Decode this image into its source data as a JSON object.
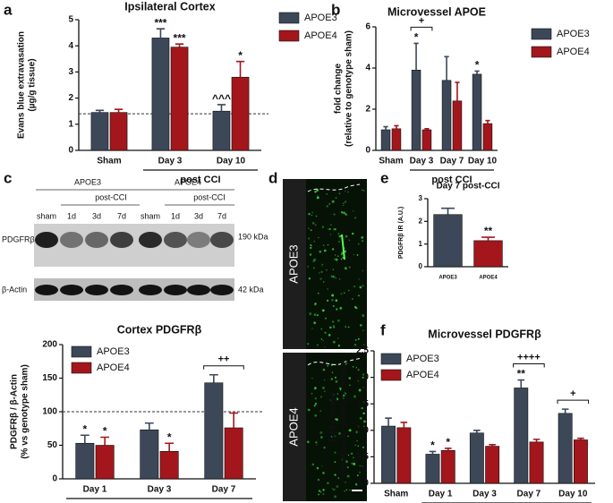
{
  "panel_labels": [
    "a",
    "b",
    "c",
    "d",
    "e",
    "f"
  ],
  "blot": {
    "groups": [
      "APOE3",
      "APOE4"
    ],
    "subgroup": "post-CCI",
    "lanes": [
      "sham",
      "1d",
      "3d",
      "7d",
      "sham",
      "1d",
      "3d",
      "7d"
    ],
    "rows": [
      {
        "label": "PDGFRβ",
        "size": "190 kDa"
      },
      {
        "label": "β-Actin",
        "size": "42 kDa"
      }
    ]
  },
  "micrograph": {
    "panels": [
      "APOE3",
      "APOE4"
    ]
  },
  "chart_data": [
    {
      "type": "bar",
      "title": "Ipsilateral Cortex",
      "ylabel": [
        "Evans blue extravasation",
        "(µg/g tissue)"
      ],
      "categories": [
        "Sham",
        "Day 3",
        "Day 10"
      ],
      "group_label": "post CCI",
      "series": [
        {
          "name": "APOE3",
          "color": "#3c4858",
          "values": [
            1.45,
            4.3,
            1.5
          ],
          "errors": [
            0.08,
            0.35,
            0.25
          ],
          "labels": [
            null,
            "***",
            "^^^"
          ]
        },
        {
          "name": "APOE4",
          "color": "#a3161c",
          "values": [
            1.45,
            3.95,
            2.8
          ],
          "errors": [
            0.12,
            0.12,
            0.6
          ],
          "labels": [
            null,
            "***",
            "*"
          ]
        }
      ],
      "ylim": [
        0,
        5
      ],
      "yticks": [
        0,
        1,
        2,
        3,
        4,
        5
      ],
      "reference_line": 1.4,
      "legend": "upper right"
    },
    {
      "type": "bar",
      "title": "Microvessel APOE",
      "ylabel": [
        "fold change",
        "(relative to genotype sham)"
      ],
      "categories": [
        "Sham",
        "Day 3",
        "Day 7",
        "Day 10"
      ],
      "group_label": "post CCI",
      "series": [
        {
          "name": "APOE3",
          "color": "#3c4858",
          "values": [
            1.0,
            3.9,
            3.4,
            3.7
          ],
          "errors": [
            0.15,
            1.3,
            1.15,
            0.15
          ],
          "labels": [
            null,
            "*",
            null,
            "*"
          ]
        },
        {
          "name": "APOE4",
          "color": "#a3161c",
          "values": [
            1.05,
            1.0,
            2.4,
            1.3
          ],
          "errors": [
            0.15,
            0.05,
            0.9,
            0.15
          ],
          "labels": [
            null,
            null,
            null,
            null
          ]
        }
      ],
      "bracket_labels": [
        null,
        "+",
        null,
        null
      ],
      "ylim": [
        0,
        6
      ],
      "yticks": [
        0,
        2,
        4,
        6
      ],
      "legend": "upper right"
    },
    {
      "type": "bar",
      "title": "Cortex PDGFRβ",
      "ylabel": [
        "PDGFRβ / β-Actin",
        "(% vs genotype sham)"
      ],
      "categories": [
        "Day 1",
        "Day 3",
        "Day 7"
      ],
      "group_label": "post CCI",
      "series": [
        {
          "name": "APOE3",
          "color": "#3c4858",
          "values": [
            53,
            73,
            143
          ],
          "errors": [
            12,
            10,
            12
          ],
          "labels": [
            "*",
            null,
            null
          ]
        },
        {
          "name": "APOE4",
          "color": "#a3161c",
          "values": [
            50,
            41,
            76
          ],
          "errors": [
            12,
            12,
            22
          ],
          "labels": [
            "*",
            "*",
            null
          ]
        }
      ],
      "bracket_labels": [
        null,
        null,
        "++"
      ],
      "ylim": [
        0,
        200
      ],
      "yticks": [
        0,
        50,
        100,
        150,
        200
      ],
      "reference_line": 100,
      "legend": "upper left"
    },
    {
      "type": "bar",
      "title": "Day 7 post-CCI",
      "ylabel": [
        "PDGFRβ IR (A.U.)"
      ],
      "categories": [
        "APOE3",
        "APOE4"
      ],
      "values": [
        2.3,
        1.15
      ],
      "errors": [
        0.28,
        0.15
      ],
      "labels": [
        null,
        "**"
      ],
      "colors": [
        "#3c4858",
        "#a3161c"
      ],
      "ylim": [
        0,
        3
      ],
      "yticks": [
        0,
        1,
        2,
        3
      ]
    },
    {
      "type": "bar",
      "title": "Microvessel PDGFRβ",
      "ylabel": [
        "fold change",
        "(relative to genotype sham)"
      ],
      "categories": [
        "Sham",
        "Day 1",
        "Day 3",
        "Day 7",
        "Day 10"
      ],
      "group_label": "post CCI",
      "series": [
        {
          "name": "APOE3",
          "color": "#3c4858",
          "values": [
            1.08,
            0.55,
            0.95,
            1.8,
            1.32
          ],
          "errors": [
            0.15,
            0.05,
            0.05,
            0.15,
            0.08
          ],
          "labels": [
            null,
            "*",
            null,
            "**",
            null
          ]
        },
        {
          "name": "APOE4",
          "color": "#a3161c",
          "values": [
            1.05,
            0.62,
            0.7,
            0.78,
            0.82
          ],
          "errors": [
            0.1,
            0.04,
            0.03,
            0.05,
            0.03
          ],
          "labels": [
            null,
            "*",
            null,
            null,
            null
          ]
        }
      ],
      "bracket_labels": [
        null,
        null,
        null,
        "++++",
        "+"
      ],
      "ylim": [
        0,
        2.5
      ],
      "yticks": [
        {
          "value": 0,
          "label": "0.0"
        },
        0.5,
        {
          "value": 1,
          "label": "1.0"
        },
        1.5,
        {
          "value": 2,
          "label": "2.0"
        },
        2.5
      ],
      "legend": "upper left"
    }
  ]
}
